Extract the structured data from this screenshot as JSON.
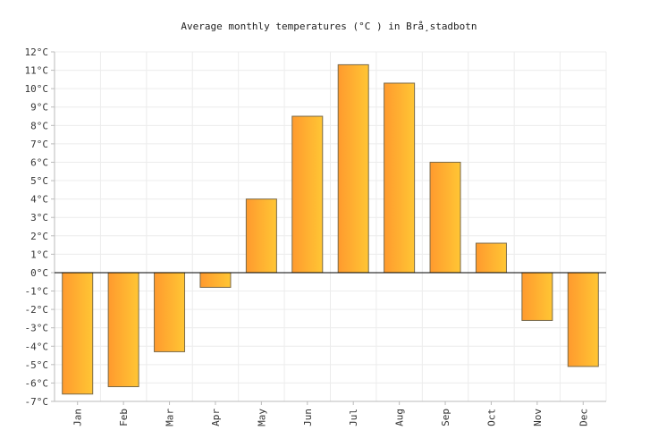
{
  "chart_data": {
    "type": "bar",
    "title": "Average monthly temperatures (°C ) in Brå¸stadbotn",
    "categories": [
      "Jan",
      "Feb",
      "Mar",
      "Apr",
      "May",
      "Jun",
      "Jul",
      "Aug",
      "Sep",
      "Oct",
      "Nov",
      "Dec"
    ],
    "values": [
      -6.6,
      -6.2,
      -4.3,
      -0.8,
      4.0,
      8.5,
      11.3,
      10.3,
      6.0,
      1.6,
      -2.6,
      -5.1
    ],
    "ylim": [
      -7,
      12
    ],
    "yticks": [
      12,
      11,
      10,
      9,
      8,
      7,
      6,
      5,
      4,
      3,
      2,
      1,
      0,
      -1,
      -2,
      -3,
      -4,
      -5,
      -6,
      -7
    ],
    "ytick_labels": [
      "12°C",
      "11°C",
      "10°C",
      "9°C",
      "8°C",
      "7°C",
      "6°C",
      "5°C",
      "4°C",
      "3°C",
      "2°C",
      "1°C",
      "0°C",
      "-1°C",
      "-2°C",
      "-3°C",
      "-4°C",
      "-5°C",
      "-6°C",
      "-7°C"
    ],
    "xlabel": "",
    "ylabel": "",
    "grid": true,
    "bar_color_start": "#ff9a2e",
    "bar_color_end": "#ffc634",
    "bar_edge": "#7a6a4a"
  }
}
